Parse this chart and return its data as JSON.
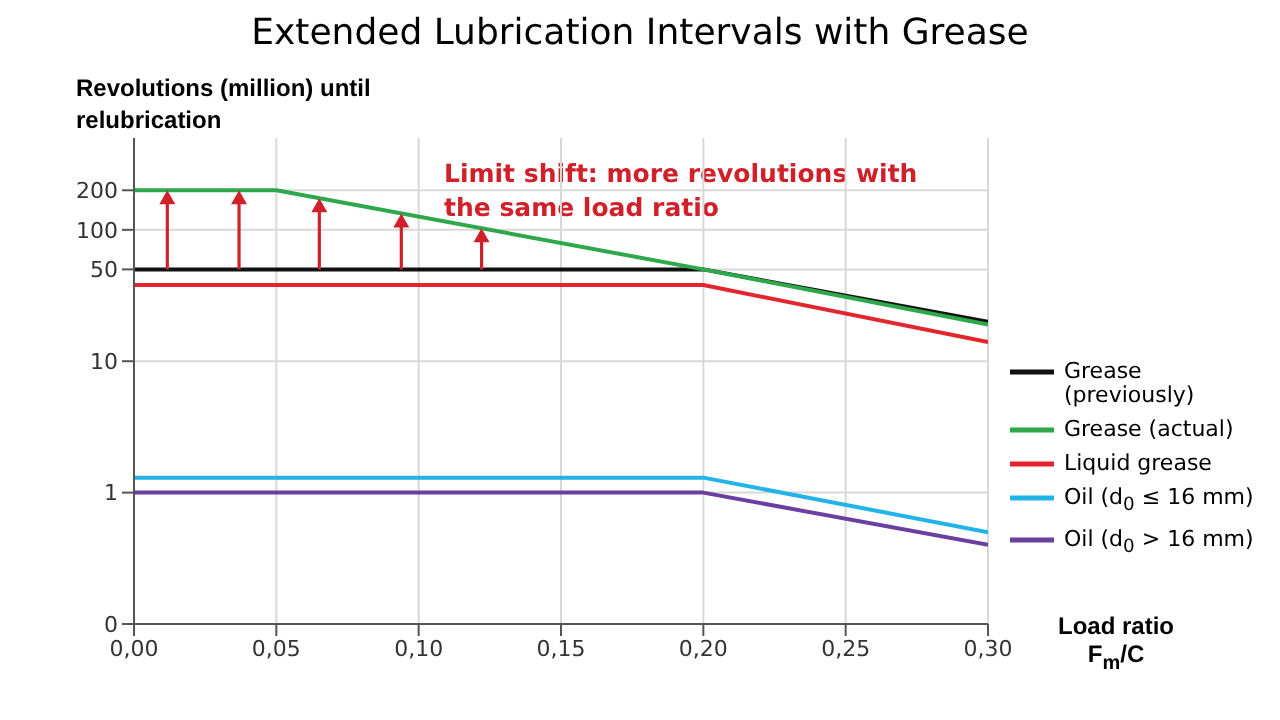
{
  "chart_data": {
    "type": "line",
    "title": "Extended Lubrication Intervals with Grease",
    "ylabel": "Revolutions (million) until relubrication",
    "xlabel": "Load ratio F$_{m}$/C",
    "annotations": [
      "Limit shift: more revolutions with the same load ratio"
    ],
    "series": [
      {
        "name": "Grease (previously)",
        "color": "#111111",
        "x": [
          0,
          0.2,
          0.3
        ],
        "values": [
          50,
          50,
          20
        ]
      },
      {
        "name": "Grease (actual)",
        "color": "#2ea84a",
        "x": [
          0,
          0.05,
          0.2,
          0.3
        ],
        "values": [
          200,
          200,
          50,
          19
        ]
      },
      {
        "name": "Liquid grease",
        "color": "#e3262e",
        "x": [
          0,
          0.2,
          0.3
        ],
        "values": [
          38,
          38,
          14
        ]
      },
      {
        "name": "Oil (d$_{0}$ ≤ 16 mm)",
        "color": "#22b3e8",
        "x": [
          0,
          0.2,
          0.3
        ],
        "values": [
          1.3,
          1.3,
          0.5
        ]
      },
      {
        "name": "Oil (d$_{0}$ > 16 mm)",
        "color": "#6b3fa0",
        "x": [
          0,
          0.2,
          0.3
        ],
        "values": [
          1,
          1,
          0.4
        ]
      }
    ],
    "xlim": [
      0,
      0.3
    ],
    "xticks": [
      {
        "value": 0,
        "label": "0,00"
      },
      {
        "value": 0.05,
        "label": "0,05"
      },
      {
        "value": 0.1,
        "label": "0,10"
      },
      {
        "value": 0.15,
        "label": "0,15"
      },
      {
        "value": 0.2,
        "label": "0,20"
      },
      {
        "value": 0.25,
        "label": "0,25"
      },
      {
        "value": 0.3,
        "label": "0,30"
      }
    ],
    "ylim": [
      0.1,
      500
    ],
    "yticks": [
      {
        "value": 0.1,
        "label": "0"
      },
      1,
      10,
      50,
      100,
      200
    ],
    "log": true,
    "grid": true,
    "legend": "right",
    "marker": "none",
    "line_style": "solid"
  }
}
